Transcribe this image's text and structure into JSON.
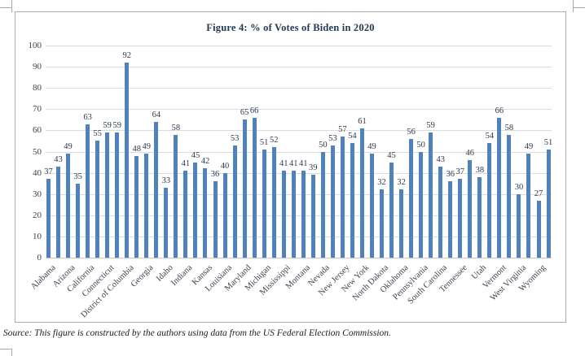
{
  "figure": {
    "title": "Figure 4: % of Votes of Biden in 2020",
    "source_note": "Source: This figure is constructed by the authors using data from the US Federal Election Commission."
  },
  "chart_data": {
    "type": "bar",
    "title": "Figure 4: % of Votes of Biden in 2020",
    "values": [
      37,
      43,
      49,
      35,
      63,
      55,
      59,
      59,
      92,
      48,
      49,
      64,
      33,
      58,
      41,
      45,
      42,
      36,
      40,
      53,
      65,
      66,
      51,
      52,
      41,
      41,
      41,
      39,
      50,
      53,
      57,
      54,
      61,
      49,
      32,
      45,
      32,
      56,
      50,
      59,
      43,
      36,
      37,
      46,
      38,
      54,
      66,
      58,
      30,
      49,
      27,
      51
    ],
    "data_labels_shown": true,
    "x_tick_labels": [
      "Alabama",
      "Arizona",
      "California",
      "Connecticut",
      "District of Columbia",
      "Georgia",
      "Idaho",
      "Indiana",
      "Kansas",
      "Louisiana",
      "Maryland",
      "Michigan",
      "Mississippi",
      "Montana",
      "Nevada",
      "New Jersey",
      "New York",
      "North Dakota",
      "Oklahoma",
      "Pennsylvania",
      "South Carolina",
      "Tennessee",
      "Utah",
      "Vermont",
      "West Virginia",
      "Wyoming"
    ],
    "x_tick_bar_indices": [
      0,
      2,
      4,
      6,
      8,
      10,
      12,
      14,
      16,
      18,
      20,
      22,
      24,
      26,
      28,
      30,
      32,
      34,
      36,
      38,
      40,
      42,
      44,
      46,
      48,
      50
    ],
    "y_ticks": [
      0,
      10,
      20,
      30,
      40,
      50,
      60,
      70,
      80,
      90,
      100
    ],
    "ylim": [
      0,
      100
    ],
    "grid": "horizontal",
    "legend": "none",
    "bar_color": "#4f81bd"
  }
}
